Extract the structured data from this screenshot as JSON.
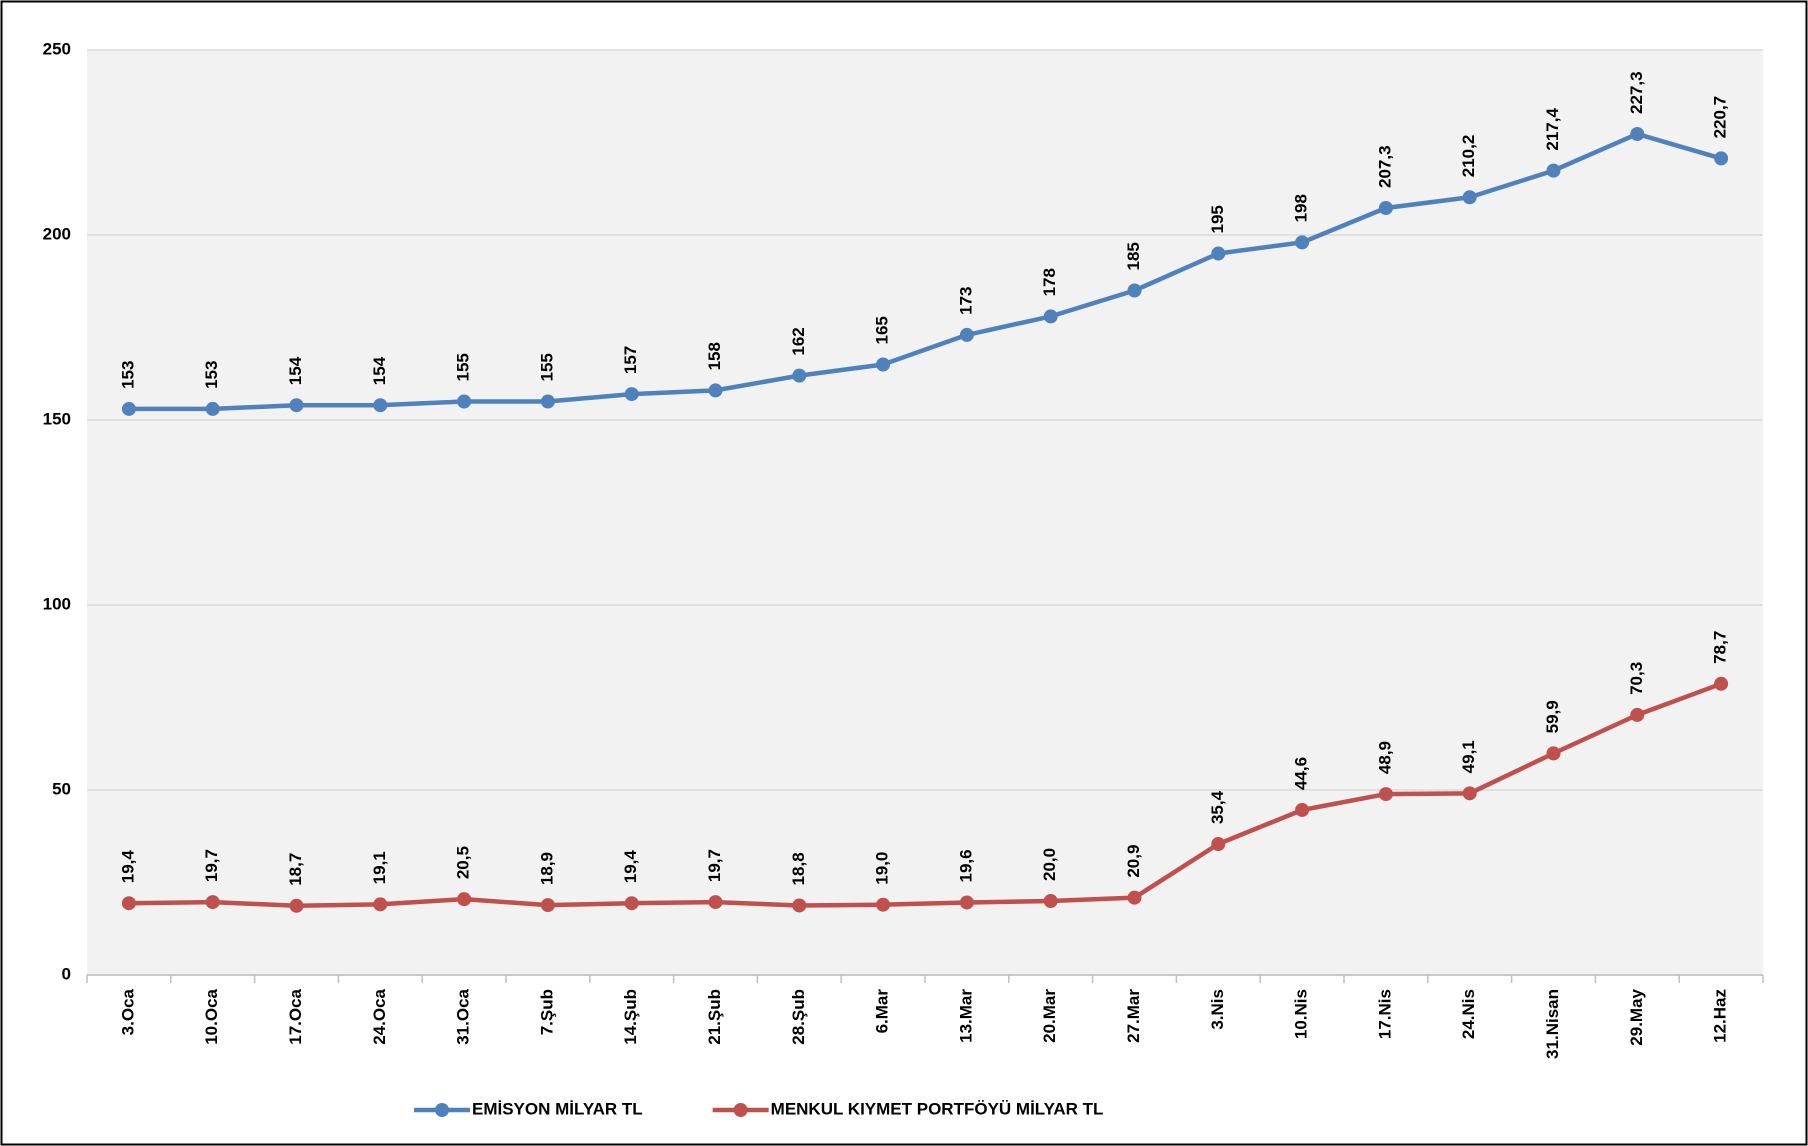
{
  "chart_data": {
    "type": "line",
    "categories": [
      "3.Oca",
      "10.Oca",
      "17.Oca",
      "24.Oca",
      "31.Oca",
      "7.Şub",
      "14.Şub",
      "21.Şub",
      "28.Şub",
      "6.Mar",
      "13.Mar",
      "20.Mar",
      "27.Mar",
      "3.Nis",
      "10.Nis",
      "17.Nis",
      "24.Nis",
      "31.Nisan",
      "29.May",
      "12.Haz"
    ],
    "series": [
      {
        "name": "EMİSYON MİLYAR TL",
        "color": "#4f81bd",
        "values": [
          153,
          153,
          154,
          154,
          155,
          155,
          157,
          158,
          162,
          165,
          173,
          178,
          185,
          195,
          198,
          207.3,
          210.2,
          217.4,
          227.3,
          220.7
        ],
        "value_labels": [
          "153",
          "153",
          "154",
          "154",
          "155",
          "155",
          "157",
          "158",
          "162",
          "165",
          "173",
          "178",
          "185",
          "195",
          "198",
          "207,3",
          "210,2",
          "217,4",
          "227,3",
          "220,7"
        ]
      },
      {
        "name": "MENKUL KIYMET PORTFÖYÜ MİLYAR TL",
        "color": "#c0504d",
        "values": [
          19.4,
          19.7,
          18.7,
          19.1,
          20.5,
          18.9,
          19.4,
          19.7,
          18.8,
          19.0,
          19.6,
          20.0,
          20.9,
          35.4,
          44.6,
          48.9,
          49.1,
          59.9,
          70.3,
          78.7
        ],
        "value_labels": [
          "19,4",
          "19,7",
          "18,7",
          "19,1",
          "20,5",
          "18,9",
          "19,4",
          "19,7",
          "18,8",
          "19,0",
          "19,6",
          "20,0",
          "20,9",
          "35,4",
          "44,6",
          "48,9",
          "49,1",
          "59,9",
          "70,3",
          "78,7"
        ]
      }
    ],
    "ylim": [
      0,
      250
    ],
    "yticks": [
      0,
      50,
      100,
      150,
      200,
      250
    ],
    "grid": true,
    "legend": "bottom"
  }
}
